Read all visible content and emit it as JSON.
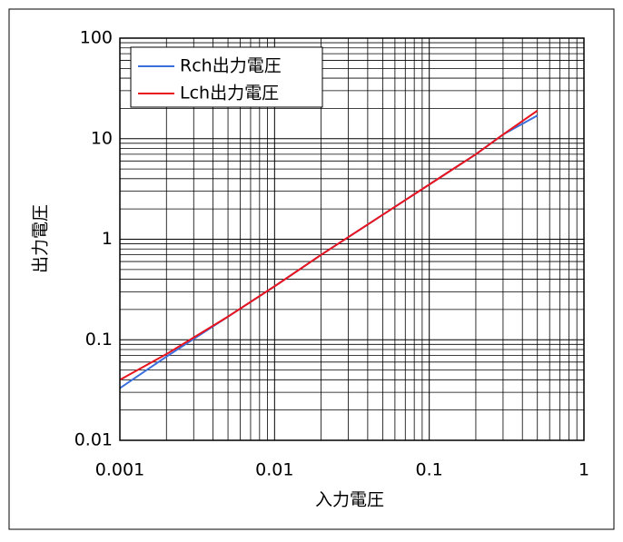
{
  "chart_data": {
    "type": "line",
    "x_label": "入力電圧",
    "y_label": "出力電圧",
    "x": [
      0.001,
      0.002,
      0.005,
      0.01,
      0.02,
      0.05,
      0.1,
      0.2,
      0.3,
      0.5
    ],
    "series": [
      {
        "name": "Rch出力電圧",
        "color": "#3a6fdc",
        "values": [
          0.033,
          0.068,
          0.17,
          0.34,
          0.7,
          1.75,
          3.5,
          7,
          11,
          17
        ]
      },
      {
        "name": "Lch出力電圧",
        "color": "#e8141e",
        "values": [
          0.04,
          0.072,
          0.17,
          0.34,
          0.7,
          1.75,
          3.5,
          7,
          11,
          19
        ]
      }
    ],
    "xlim": [
      0.001,
      1
    ],
    "ylim": [
      0.01,
      100
    ],
    "xticks": [
      0.001,
      0.01,
      0.1,
      1
    ],
    "yticks": [
      0.01,
      0.1,
      1,
      10,
      100
    ],
    "xscale": "log",
    "yscale": "log",
    "grid": true,
    "minor_grid": true,
    "legend": "upper left"
  }
}
